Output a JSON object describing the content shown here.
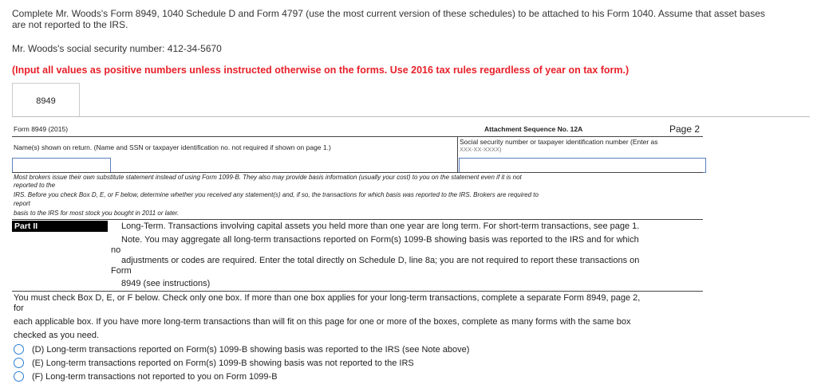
{
  "instructions": {
    "line1": "Complete Mr. Woods's Form 8949, 1040 Schedule D and Form 4797 (use the most current version of these schedules) to be attached to his Form 1040. Assume that asset bases",
    "line2": "are not reported to the IRS.",
    "ssn": "Mr. Woods's social security number: 412-34-5670",
    "note": "(Input all values as positive numbers unless instructed otherwise on the forms. Use 2016 tax rules regardless of year on tax form.)"
  },
  "tabs": [
    {
      "label": "8949",
      "active": true
    }
  ],
  "form": {
    "form_id": "Form 8949 (2015)",
    "attachment": "Attachment Sequence No. 12A",
    "page": "Page 2",
    "name_label": "Name(s) shown on return.  (Name and SSN or taxpayer identification no. not required if shown on page 1.)",
    "ssn_label1": "Social security number or taxpayer identification number (Enter as",
    "ssn_label2": "XXX-XX-XXXX)",
    "name_value": "",
    "ssn_value": "",
    "brokers": [
      "Most brokers issue their own substitute statement instead of using Form 1099-B.  They also may provide basis information (usually your cost) to you on the statement even if it is not",
      "reported to the",
      "IRS.  Before you check Box D, E, or F below, determine whether you received any statement(s) and, if so, the transactions for which basis was reported to the IRS.  Brokers are required to",
      "report",
      "basis to the IRS for most stock you bought in 2011 or later."
    ],
    "part_label": "Part II",
    "part_text": [
      "Long-Term.  Transactions involving capital assets you held more than one year are long term.  For short-term transactions, see page 1.",
      "Note.  You may aggregate all long-term transactions reported on Form(s) 1099-B showing basis was reported to the IRS and for which",
      "no",
      "adjustments or codes are required.  Enter the total directly on Schedule D, line 8a; you are not required to report these transactions on",
      "Form",
      "8949 (see instructions)"
    ],
    "check_text": [
      "You must check Box D, E, or F below.  Check only one box.  If more than one box applies for your long-term transactions, complete a separate Form 8949, page 2,",
      "for",
      "each applicable box.  If you have more long-term transactions than will fit on this page for one or more of the boxes, complete as many forms with the same box",
      "checked as you need."
    ],
    "options": [
      {
        "label": "(D) Long-term transactions reported on Form(s) 1099-B showing basis was reported to the IRS (see Note above)",
        "selected": false
      },
      {
        "label": "(E) Long-term transactions reported on Form(s) 1099-B showing basis was not reported to the IRS",
        "selected": false
      },
      {
        "label": "(F) Long-term transactions not reported to you on Form 1099-B",
        "selected": false
      }
    ]
  }
}
